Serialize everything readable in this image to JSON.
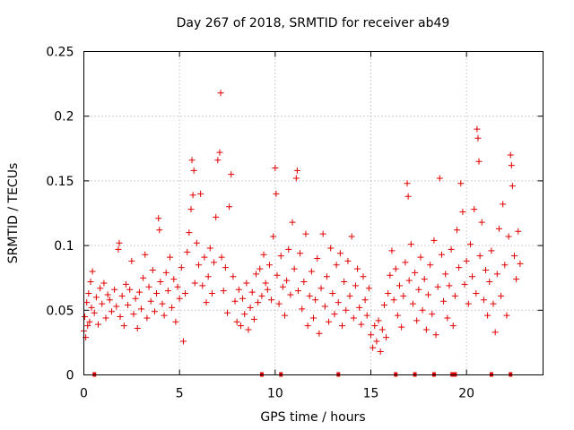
{
  "chart_data": {
    "type": "scatter",
    "title": "Day 267 of 2018, SRMTID for receiver ab49",
    "xlabel": "GPS time / hours",
    "ylabel": "SRMTID / TECUs",
    "xlim": [
      0,
      24
    ],
    "ylim": [
      0,
      0.25
    ],
    "xticks": [
      0,
      5,
      10,
      15,
      20
    ],
    "xtick_labels": [
      "0",
      "5",
      "10",
      "15",
      "20"
    ],
    "yticks": [
      0,
      0.05,
      0.1,
      0.15,
      0.2,
      0.25
    ],
    "ytick_labels": [
      "0",
      "0.05",
      "0.1",
      "0.15",
      "0.2",
      "0.25"
    ],
    "grid": true,
    "marker": "+",
    "color": "#e00000",
    "series": [
      {
        "name": "SRMTID",
        "description_of_density": "approx. one point every 20 s across 0-22.8 h; dense band 0.02-0.10 TECU",
        "points": [
          [
            0.0,
            0.034
          ],
          [
            0.05,
            0.045
          ],
          [
            0.1,
            0.029
          ],
          [
            0.15,
            0.056
          ],
          [
            0.2,
            0.038
          ],
          [
            0.25,
            0.063
          ],
          [
            0.3,
            0.041
          ],
          [
            0.35,
            0.072
          ],
          [
            0.4,
            0.052
          ],
          [
            0.45,
            0.08
          ],
          [
            0.55,
            0.048
          ],
          [
            0.65,
            0.06
          ],
          [
            0.75,
            0.039
          ],
          [
            0.85,
            0.067
          ],
          [
            0.95,
            0.055
          ],
          [
            1.05,
            0.071
          ],
          [
            1.15,
            0.044
          ],
          [
            1.25,
            0.062
          ],
          [
            1.35,
            0.058
          ],
          [
            1.45,
            0.049
          ],
          [
            1.6,
            0.066
          ],
          [
            1.7,
            0.053
          ],
          [
            1.8,
            0.097
          ],
          [
            1.85,
            0.102
          ],
          [
            1.9,
            0.045
          ],
          [
            2.0,
            0.061
          ],
          [
            2.1,
            0.038
          ],
          [
            2.2,
            0.07
          ],
          [
            2.3,
            0.054
          ],
          [
            2.4,
            0.066
          ],
          [
            2.5,
            0.088
          ],
          [
            2.6,
            0.047
          ],
          [
            2.7,
            0.059
          ],
          [
            2.8,
            0.036
          ],
          [
            2.9,
            0.064
          ],
          [
            3.0,
            0.051
          ],
          [
            3.1,
            0.075
          ],
          [
            3.2,
            0.093
          ],
          [
            3.3,
            0.044
          ],
          [
            3.4,
            0.068
          ],
          [
            3.5,
            0.057
          ],
          [
            3.6,
            0.081
          ],
          [
            3.7,
            0.049
          ],
          [
            3.8,
            0.063
          ],
          [
            3.9,
            0.121
          ],
          [
            3.95,
            0.112
          ],
          [
            4.0,
            0.072
          ],
          [
            4.1,
            0.055
          ],
          [
            4.2,
            0.046
          ],
          [
            4.3,
            0.079
          ],
          [
            4.4,
            0.065
          ],
          [
            4.5,
            0.091
          ],
          [
            4.6,
            0.052
          ],
          [
            4.7,
            0.074
          ],
          [
            4.8,
            0.041
          ],
          [
            4.9,
            0.068
          ],
          [
            5.0,
            0.059
          ],
          [
            5.1,
            0.083
          ],
          [
            5.2,
            0.026
          ],
          [
            5.3,
            0.063
          ],
          [
            5.4,
            0.095
          ],
          [
            5.5,
            0.11
          ],
          [
            5.6,
            0.128
          ],
          [
            5.65,
            0.166
          ],
          [
            5.7,
            0.139
          ],
          [
            5.75,
            0.158
          ],
          [
            5.8,
            0.071
          ],
          [
            5.9,
            0.102
          ],
          [
            6.0,
            0.085
          ],
          [
            6.1,
            0.14
          ],
          [
            6.2,
            0.069
          ],
          [
            6.3,
            0.091
          ],
          [
            6.4,
            0.056
          ],
          [
            6.5,
            0.076
          ],
          [
            6.6,
            0.098
          ],
          [
            6.7,
            0.063
          ],
          [
            6.8,
            0.087
          ],
          [
            6.9,
            0.122
          ],
          [
            7.0,
            0.166
          ],
          [
            7.1,
            0.172
          ],
          [
            7.15,
            0.218
          ],
          [
            7.2,
            0.091
          ],
          [
            7.3,
            0.065
          ],
          [
            7.4,
            0.083
          ],
          [
            7.5,
            0.048
          ],
          [
            7.6,
            0.13
          ],
          [
            7.7,
            0.155
          ],
          [
            7.8,
            0.076
          ],
          [
            7.9,
            0.057
          ],
          [
            8.0,
            0.041
          ],
          [
            8.1,
            0.066
          ],
          [
            8.2,
            0.038
          ],
          [
            8.3,
            0.059
          ],
          [
            8.4,
            0.047
          ],
          [
            8.5,
            0.071
          ],
          [
            8.6,
            0.035
          ],
          [
            8.7,
            0.052
          ],
          [
            8.8,
            0.064
          ],
          [
            8.9,
            0.043
          ],
          [
            9.0,
            0.078
          ],
          [
            9.1,
            0.056
          ],
          [
            9.2,
            0.082
          ],
          [
            9.3,
            0.061
          ],
          [
            9.4,
            0.093
          ],
          [
            9.5,
            0.071
          ],
          [
            9.6,
            0.066
          ],
          [
            9.7,
            0.085
          ],
          [
            9.8,
            0.058
          ],
          [
            9.9,
            0.107
          ],
          [
            10.0,
            0.16
          ],
          [
            10.05,
            0.14
          ],
          [
            10.1,
            0.077
          ],
          [
            10.2,
            0.055
          ],
          [
            10.3,
            0.092
          ],
          [
            10.4,
            0.068
          ],
          [
            10.5,
            0.046
          ],
          [
            10.6,
            0.073
          ],
          [
            10.7,
            0.097
          ],
          [
            10.8,
            0.062
          ],
          [
            10.9,
            0.118
          ],
          [
            11.0,
            0.082
          ],
          [
            11.1,
            0.152
          ],
          [
            11.15,
            0.158
          ],
          [
            11.2,
            0.065
          ],
          [
            11.3,
            0.094
          ],
          [
            11.4,
            0.051
          ],
          [
            11.5,
            0.072
          ],
          [
            11.6,
            0.109
          ],
          [
            11.7,
            0.038
          ],
          [
            11.8,
            0.061
          ],
          [
            11.9,
            0.08
          ],
          [
            12.0,
            0.044
          ],
          [
            12.1,
            0.058
          ],
          [
            12.2,
            0.09
          ],
          [
            12.3,
            0.032
          ],
          [
            12.4,
            0.067
          ],
          [
            12.5,
            0.109
          ],
          [
            12.6,
            0.053
          ],
          [
            12.7,
            0.076
          ],
          [
            12.8,
            0.041
          ],
          [
            12.9,
            0.098
          ],
          [
            13.0,
            0.063
          ],
          [
            13.1,
            0.047
          ],
          [
            13.2,
            0.085
          ],
          [
            13.3,
            0.056
          ],
          [
            13.4,
            0.094
          ],
          [
            13.5,
            0.038
          ],
          [
            13.6,
            0.072
          ],
          [
            13.7,
            0.05
          ],
          [
            13.8,
            0.088
          ],
          [
            13.9,
            0.061
          ],
          [
            14.0,
            0.107
          ],
          [
            14.1,
            0.044
          ],
          [
            14.2,
            0.069
          ],
          [
            14.3,
            0.082
          ],
          [
            14.4,
            0.052
          ],
          [
            14.5,
            0.039
          ],
          [
            14.6,
            0.076
          ],
          [
            14.7,
            0.058
          ],
          [
            14.8,
            0.046
          ],
          [
            14.9,
            0.067
          ],
          [
            15.0,
            0.031
          ],
          [
            15.1,
            0.021
          ],
          [
            15.2,
            0.038
          ],
          [
            15.3,
            0.026
          ],
          [
            15.4,
            0.042
          ],
          [
            15.5,
            0.018
          ],
          [
            15.6,
            0.035
          ],
          [
            15.7,
            0.054
          ],
          [
            15.8,
            0.029
          ],
          [
            15.9,
            0.063
          ],
          [
            16.0,
            0.077
          ],
          [
            16.1,
            0.096
          ],
          [
            16.2,
            0.058
          ],
          [
            16.3,
            0.082
          ],
          [
            16.4,
            0.046
          ],
          [
            16.5,
            0.069
          ],
          [
            16.6,
            0.037
          ],
          [
            16.7,
            0.061
          ],
          [
            16.8,
            0.087
          ],
          [
            16.9,
            0.148
          ],
          [
            16.95,
            0.138
          ],
          [
            17.0,
            0.073
          ],
          [
            17.1,
            0.101
          ],
          [
            17.2,
            0.055
          ],
          [
            17.3,
            0.079
          ],
          [
            17.4,
            0.042
          ],
          [
            17.5,
            0.066
          ],
          [
            17.6,
            0.091
          ],
          [
            17.7,
            0.05
          ],
          [
            17.8,
            0.074
          ],
          [
            17.9,
            0.035
          ],
          [
            18.0,
            0.062
          ],
          [
            18.1,
            0.085
          ],
          [
            18.2,
            0.047
          ],
          [
            18.3,
            0.104
          ],
          [
            18.4,
            0.031
          ],
          [
            18.5,
            0.068
          ],
          [
            18.6,
            0.152
          ],
          [
            18.7,
            0.093
          ],
          [
            18.8,
            0.057
          ],
          [
            18.9,
            0.078
          ],
          [
            19.0,
            0.044
          ],
          [
            19.1,
            0.069
          ],
          [
            19.2,
            0.097
          ],
          [
            19.3,
            0.038
          ],
          [
            19.4,
            0.061
          ],
          [
            19.5,
            0.112
          ],
          [
            19.6,
            0.083
          ],
          [
            19.7,
            0.148
          ],
          [
            19.8,
            0.126
          ],
          [
            19.9,
            0.07
          ],
          [
            20.0,
            0.088
          ],
          [
            20.1,
            0.055
          ],
          [
            20.2,
            0.101
          ],
          [
            20.3,
            0.076
          ],
          [
            20.4,
            0.128
          ],
          [
            20.5,
            0.063
          ],
          [
            20.55,
            0.19
          ],
          [
            20.6,
            0.183
          ],
          [
            20.65,
            0.165
          ],
          [
            20.7,
            0.092
          ],
          [
            20.8,
            0.118
          ],
          [
            20.9,
            0.058
          ],
          [
            21.0,
            0.081
          ],
          [
            21.1,
            0.046
          ],
          [
            21.2,
            0.072
          ],
          [
            21.3,
            0.096
          ],
          [
            21.4,
            0.055
          ],
          [
            21.5,
            0.033
          ],
          [
            21.6,
            0.078
          ],
          [
            21.7,
            0.113
          ],
          [
            21.8,
            0.061
          ],
          [
            21.9,
            0.132
          ],
          [
            22.0,
            0.085
          ],
          [
            22.1,
            0.046
          ],
          [
            22.2,
            0.107
          ],
          [
            22.3,
            0.17
          ],
          [
            22.35,
            0.162
          ],
          [
            22.4,
            0.146
          ],
          [
            22.5,
            0.092
          ],
          [
            22.6,
            0.074
          ],
          [
            22.7,
            0.111
          ],
          [
            22.8,
            0.086
          ]
        ]
      }
    ],
    "gap_markers": [
      0.55,
      9.3,
      10.3,
      13.3,
      16.3,
      17.3,
      18.3,
      19.25,
      19.4,
      21.3,
      22.3
    ]
  }
}
